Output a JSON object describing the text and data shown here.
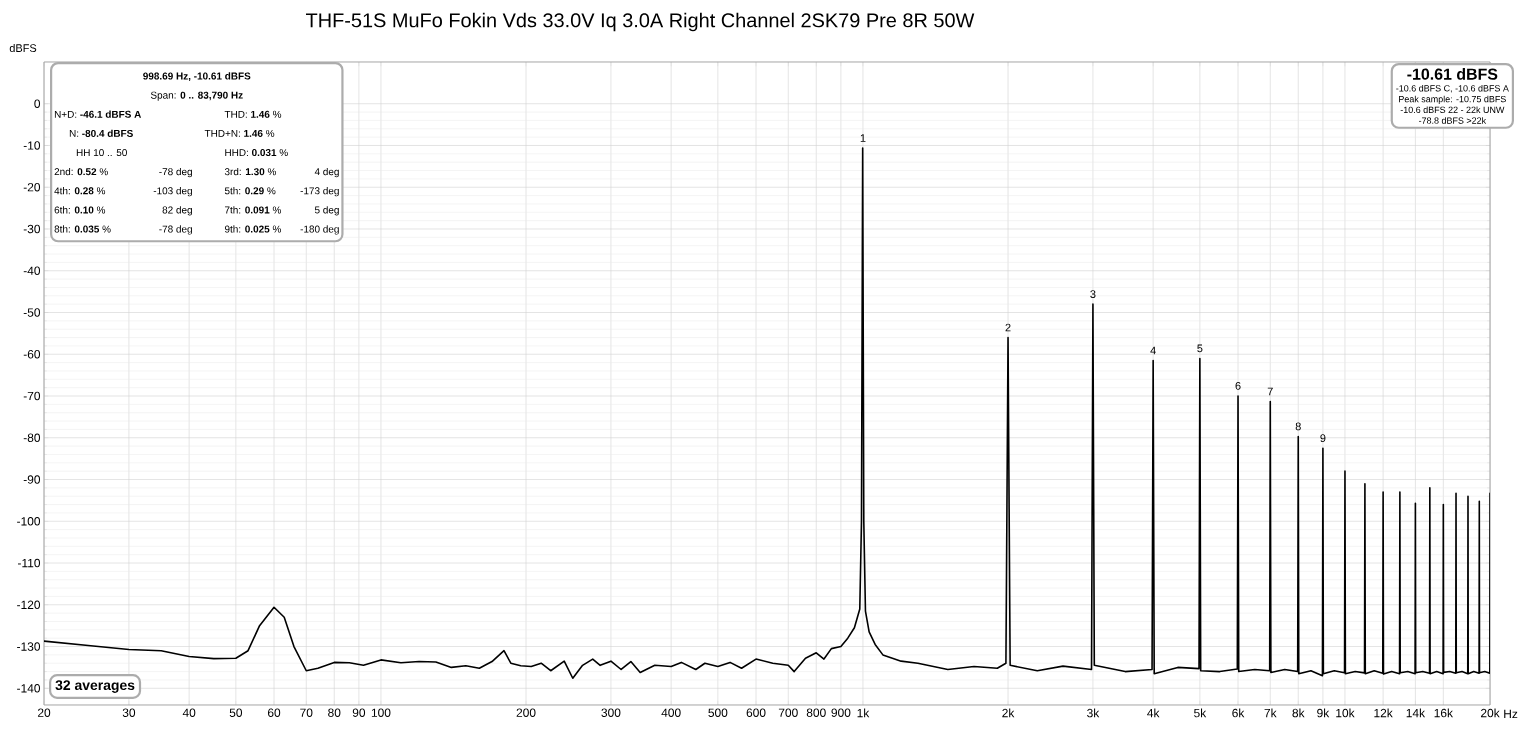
{
  "chart_data": {
    "type": "line",
    "title": "THF-51S MuFo Fokin Vds 33.0V Iq 3.0A Right Channel 2SK79 Pre 8R 50W",
    "ylabel": "dBFS",
    "log": "x",
    "grid": true,
    "xlim": [
      20,
      20000
    ],
    "ylim": [
      -144,
      10
    ],
    "xticks": [
      20,
      30,
      40,
      50,
      60,
      70,
      80,
      90,
      100,
      200,
      300,
      400,
      500,
      600,
      700,
      800,
      900,
      {
        "value": 1000,
        "label": "1k"
      },
      {
        "value": 2000,
        "label": "2k"
      },
      {
        "value": 3000,
        "label": "3k"
      },
      {
        "value": 4000,
        "label": "4k"
      },
      {
        "value": 5000,
        "label": "5k"
      },
      {
        "value": 6000,
        "label": "6k"
      },
      {
        "value": 7000,
        "label": "7k"
      },
      {
        "value": 8000,
        "label": "8k"
      },
      {
        "value": 9000,
        "label": "9k"
      },
      {
        "value": 10000,
        "label": "10k"
      },
      {
        "value": 12000,
        "label": "12k"
      },
      {
        "value": 14000,
        "label": "14k"
      },
      {
        "value": 16000,
        "label": "16k"
      },
      {
        "value": 20000,
        "label": "20k"
      }
    ],
    "xlabel": "Hz",
    "yticks": [
      0,
      -10,
      -20,
      -30,
      -40,
      -50,
      -60,
      -70,
      -80,
      -90,
      -100,
      -110,
      -120,
      -130,
      -140
    ],
    "x": [
      20,
      25,
      30,
      35,
      40,
      45,
      50,
      53,
      56,
      60,
      63,
      66,
      70,
      74,
      80,
      86,
      92,
      100,
      110,
      120,
      130,
      140,
      150,
      160,
      170,
      180,
      186,
      195,
      205,
      215,
      225,
      240,
      250,
      262,
      275,
      285,
      300,
      315,
      330,
      345,
      370,
      400,
      420,
      450,
      470,
      500,
      530,
      560,
      600,
      650,
      700,
      720,
      760,
      800,
      830,
      860,
      900,
      930,
      960,
      985,
      993,
      998.69,
      1004,
      1012,
      1030,
      1060,
      1100,
      1200,
      1300,
      1500,
      1700,
      1900,
      1980,
      2000,
      2020,
      2300,
      2600,
      2980,
      3000,
      3020,
      3500,
      3980,
      4000,
      4020,
      4500,
      4980,
      5000,
      5020,
      5500,
      5980,
      6000,
      6020,
      6500,
      6980,
      7000,
      7020,
      7500,
      7980,
      8000,
      8020,
      8500,
      8980,
      9000,
      9020,
      9500,
      9980,
      10000,
      10020,
      10500,
      10980,
      11000,
      11020,
      11500,
      11980,
      12000,
      12020,
      12500,
      12980,
      13000,
      13020,
      13500,
      13980,
      14000,
      14020,
      14500,
      14980,
      15000,
      15020,
      15500,
      15980,
      16000,
      16020,
      16500,
      16980,
      17000,
      17020,
      17500,
      17980,
      18000,
      18020,
      18500,
      18980,
      19000,
      19020,
      19500,
      19980,
      20000
    ],
    "series": [
      {
        "color": "#000000",
        "values": [
          -128.7,
          -129.8,
          -130.7,
          -131.0,
          -132.4,
          -132.9,
          -132.8,
          -131,
          -125,
          -120.6,
          -123,
          -130,
          -135.8,
          -135.2,
          -133.8,
          -133.9,
          -134.5,
          -133.2,
          -133.9,
          -133.6,
          -133.7,
          -135,
          -134.6,
          -135.2,
          -133.6,
          -131,
          -134,
          -134.6,
          -134.8,
          -134,
          -135.8,
          -133.5,
          -137.6,
          -134.5,
          -133,
          -134.5,
          -133.5,
          -135.5,
          -133.6,
          -136.2,
          -134.5,
          -134.8,
          -133.8,
          -135.5,
          -134,
          -134.8,
          -133.8,
          -135.2,
          -133,
          -134,
          -134.5,
          -136,
          -132.8,
          -131.5,
          -133,
          -130.5,
          -130,
          -128,
          -125.5,
          -121,
          -100,
          -10.6,
          -100,
          -121.5,
          -126.5,
          -129.5,
          -132,
          -133.5,
          -134,
          -135.5,
          -134.8,
          -135.2,
          -134,
          -56,
          -134.5,
          -135.8,
          -134.7,
          -135.5,
          -48,
          -134.5,
          -136,
          -135.5,
          -61.5,
          -136.5,
          -135,
          -135.3,
          -61,
          -135.8,
          -136,
          -135.4,
          -70,
          -136,
          -135.5,
          -135.8,
          -71.3,
          -136.2,
          -135.5,
          -136,
          -79.7,
          -136.5,
          -135.8,
          -137,
          -82.5,
          -136.5,
          -135.8,
          -136.3,
          -88,
          -136.5,
          -136,
          -136.3,
          -91,
          -136.5,
          -135.8,
          -136.4,
          -93,
          -136.6,
          -136,
          -136.5,
          -93,
          -136.3,
          -136,
          -136.5,
          -95.7,
          -136.3,
          -136,
          -136.4,
          -92,
          -136.5,
          -136,
          -136.5,
          -96,
          -136.2,
          -136,
          -136.4,
          -93.3,
          -136.3,
          -136,
          -136.5,
          -94,
          -136.5,
          -136,
          -136.4,
          -95.2,
          -136.3,
          -136,
          -136.4,
          -93.3
        ]
      }
    ],
    "annotations": [
      "998.69 Hz, -10.61 dBFS",
      "Span: **0 .. 83,790 Hz**",
      "N+D: **-46.1 dBFS A**",
      "THD: **1.46** %",
      "N: **-80.4 dBFS**",
      "THD+N: **1.46** %",
      "HH 10 .. 50",
      "HHD: **0.031** %",
      "2nd: **0.52** %",
      "-78 deg",
      "3rd: **1.30** %",
      "4 deg",
      "4th: **0.28** %",
      "-103 deg",
      "5th: **0.29** %",
      "-173 deg",
      "6th: **0.10** %",
      "82 deg",
      "7th: **0.091** %",
      "5 deg",
      "8th: **0.035** %",
      "-78 deg",
      "9th: **0.025** %",
      "-180 deg",
      "-10.61 dBFS",
      "-10.6 dBFS C, -10.6 dBFS A",
      "Peak sample: -10.75 dBFS",
      "-10.6 dBFS 22 - 22k UNW",
      "-78.8 dBFS >22k",
      "32 averages",
      {
        "text": "1",
        "x": 1000,
        "y": -10.6
      },
      {
        "text": "2",
        "x": 2000,
        "y": -56
      },
      {
        "text": "3",
        "x": 3000,
        "y": -48
      },
      {
        "text": "4",
        "x": 4000,
        "y": -61.5
      },
      {
        "text": "5",
        "x": 5000,
        "y": -61
      },
      {
        "text": "6",
        "x": 6000,
        "y": -70
      },
      {
        "text": "7",
        "x": 7000,
        "y": -71.3
      },
      {
        "text": "8",
        "x": 8000,
        "y": -79.7
      },
      {
        "text": "9",
        "x": 9000,
        "y": -82.5
      }
    ]
  }
}
